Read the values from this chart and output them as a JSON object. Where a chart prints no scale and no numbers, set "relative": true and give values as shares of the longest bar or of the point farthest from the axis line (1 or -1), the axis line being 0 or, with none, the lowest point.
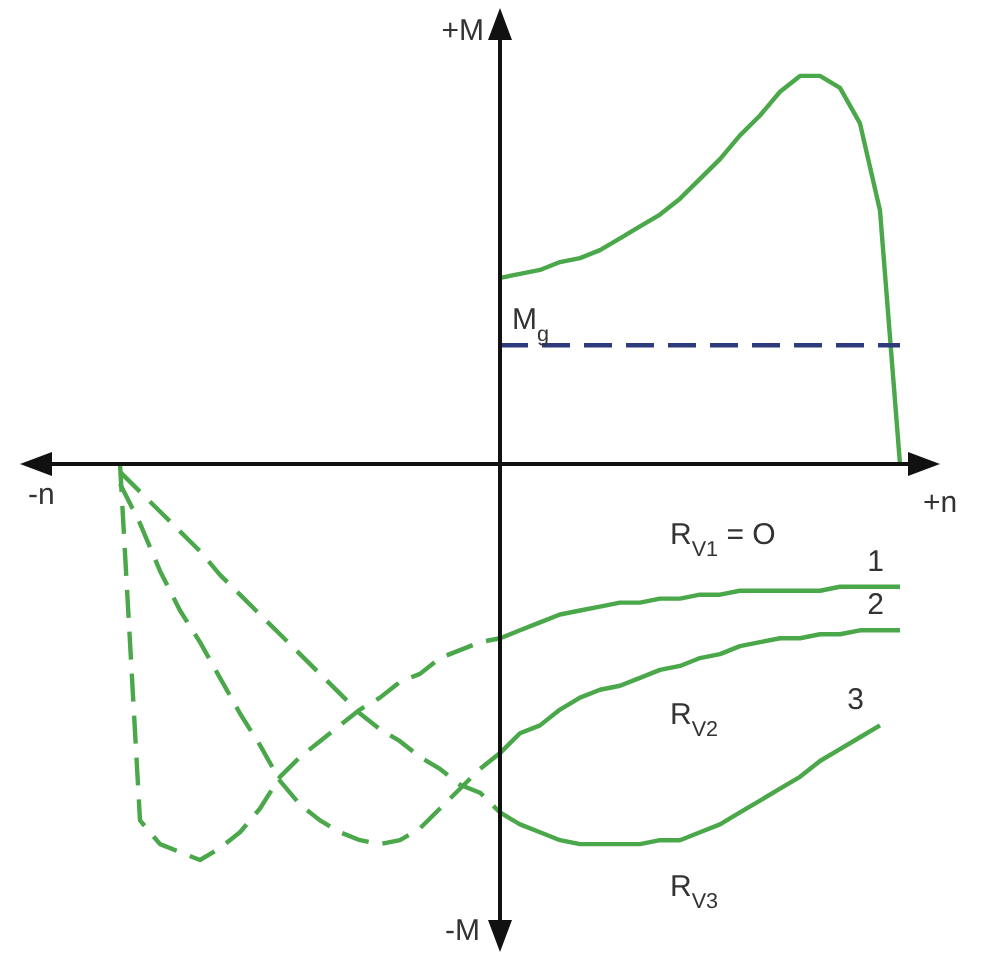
{
  "chart_data": {
    "type": "line",
    "relative": true,
    "xlabel": "+n",
    "ylabel": "+M",
    "categories": [
      null,
      null,
      null,
      null,
      null,
      null,
      null,
      null,
      null,
      null,
      null,
      null,
      null,
      null,
      null,
      null,
      null,
      null,
      null,
      null,
      null,
      null,
      null,
      null,
      null,
      null,
      null,
      null,
      null,
      null,
      null,
      null,
      null,
      null,
      null,
      null,
      null,
      null,
      null,
      null,
      null,
      null,
      null,
      null,
      null,
      null,
      null
    ],
    "series": [
      {
        "color": "#4aa84a",
        "line_style": "solid",
        "values": [
          null,
          null,
          null,
          null,
          null,
          null,
          null,
          null,
          null,
          null,
          null,
          null,
          null,
          null,
          null,
          null,
          null,
          null,
          null,
          null,
          null,
          null,
          null,
          null,
          0.47,
          0.48,
          0.49,
          0.51,
          0.52,
          0.54,
          0.57,
          0.6,
          0.63,
          0.67,
          0.72,
          0.77,
          0.83,
          0.88,
          0.94,
          0.98,
          0.98,
          0.95,
          0.86,
          0.64,
          0,
          null,
          null
        ]
      },
      {
        "name": "M$_{g}$",
        "color": "#2d3b7c",
        "line_style": "dashed",
        "values": [
          null,
          null,
          null,
          null,
          null,
          null,
          null,
          null,
          null,
          null,
          null,
          null,
          null,
          null,
          null,
          null,
          null,
          null,
          null,
          null,
          null,
          null,
          null,
          null,
          0.3,
          0.3,
          0.3,
          0.3,
          0.3,
          0.3,
          0.3,
          0.3,
          0.3,
          0.3,
          0.3,
          0.3,
          0.3,
          0.3,
          0.3,
          0.3,
          0.3,
          0.3,
          0.3,
          0.3,
          0.3,
          null,
          null
        ]
      },
      {
        "color": "#4aa84a",
        "line_style": "dashed",
        "values": [
          null,
          null,
          null,
          null,
          null,
          0,
          -0.9,
          -0.96,
          -0.98,
          -1,
          -0.97,
          -0.93,
          -0.87,
          -0.79,
          -0.74,
          -0.7,
          -0.66,
          -0.62,
          -0.59,
          -0.55,
          -0.53,
          -0.49,
          -0.47,
          -0.45,
          -0.44,
          null,
          null,
          null,
          null,
          null,
          null,
          null,
          null,
          null,
          null,
          null,
          null,
          null,
          null,
          null,
          null,
          null,
          null,
          null,
          null,
          null,
          null
        ]
      },
      {
        "name": "1",
        "color": "#4aa84a",
        "line_style": "solid",
        "values": [
          null,
          null,
          null,
          null,
          null,
          null,
          null,
          null,
          null,
          null,
          null,
          null,
          null,
          null,
          null,
          null,
          null,
          null,
          null,
          null,
          null,
          null,
          null,
          null,
          -0.44,
          -0.42,
          -0.4,
          -0.38,
          -0.37,
          -0.36,
          -0.35,
          -0.35,
          -0.34,
          -0.34,
          -0.33,
          -0.33,
          -0.32,
          -0.32,
          -0.32,
          -0.32,
          -0.32,
          -0.31,
          -0.31,
          -0.31,
          -0.31,
          null,
          null
        ]
      },
      {
        "color": "#4aa84a",
        "line_style": "dashed",
        "values": [
          null,
          null,
          null,
          null,
          null,
          -0.05,
          -0.15,
          -0.27,
          -0.37,
          -0.45,
          -0.54,
          -0.63,
          -0.71,
          -0.8,
          -0.86,
          -0.9,
          -0.93,
          -0.95,
          -0.96,
          -0.95,
          -0.92,
          -0.87,
          -0.82,
          -0.77,
          -0.73,
          null,
          null,
          null,
          null,
          null,
          null,
          null,
          null,
          null,
          null,
          null,
          null,
          null,
          null,
          null,
          null,
          null,
          null,
          null,
          null,
          null,
          null
        ]
      },
      {
        "name": "2",
        "color": "#4aa84a",
        "line_style": "solid",
        "values": [
          null,
          null,
          null,
          null,
          null,
          null,
          null,
          null,
          null,
          null,
          null,
          null,
          null,
          null,
          null,
          null,
          null,
          null,
          null,
          null,
          null,
          null,
          null,
          null,
          -0.73,
          -0.68,
          -0.66,
          -0.62,
          -0.59,
          -0.57,
          -0.56,
          -0.54,
          -0.52,
          -0.51,
          -0.49,
          -0.48,
          -0.46,
          -0.45,
          -0.44,
          -0.44,
          -0.43,
          -0.43,
          -0.42,
          -0.42,
          -0.42,
          null,
          null
        ]
      },
      {
        "color": "#4aa84a",
        "line_style": "dashed",
        "values": [
          null,
          null,
          null,
          null,
          null,
          -0.02,
          -0.07,
          -0.12,
          -0.17,
          -0.22,
          -0.28,
          -0.33,
          -0.38,
          -0.43,
          -0.48,
          -0.53,
          -0.58,
          -0.63,
          -0.67,
          -0.7,
          -0.74,
          -0.77,
          -0.81,
          -0.83,
          -0.88,
          null,
          null,
          null,
          null,
          null,
          null,
          null,
          null,
          null,
          null,
          null,
          null,
          null,
          null,
          null,
          null,
          null,
          null,
          null,
          null,
          null,
          null
        ]
      },
      {
        "name": "3",
        "color": "#4aa84a",
        "line_style": "solid",
        "values": [
          null,
          null,
          null,
          null,
          null,
          null,
          null,
          null,
          null,
          null,
          null,
          null,
          null,
          null,
          null,
          null,
          null,
          null,
          null,
          null,
          null,
          null,
          null,
          null,
          -0.88,
          -0.91,
          -0.93,
          -0.95,
          -0.96,
          -0.96,
          -0.96,
          -0.96,
          -0.95,
          -0.95,
          -0.93,
          -0.91,
          -0.88,
          -0.85,
          -0.82,
          -0.79,
          -0.75,
          -0.72,
          -0.69,
          -0.66,
          null,
          null,
          null
        ]
      }
    ],
    "annotations": [
      "R$_{V1}$ = O",
      "R$_{V2}$",
      "R$_{V3}$",
      "-M",
      "-n"
    ]
  }
}
